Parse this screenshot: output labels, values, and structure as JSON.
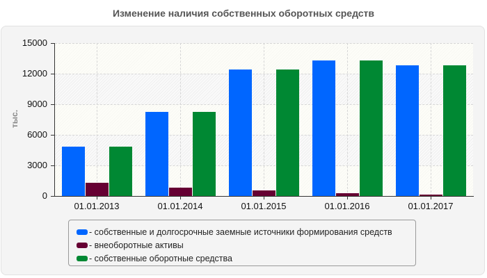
{
  "chart_data": {
    "type": "bar",
    "title": "Изменение наличия собственных оборотных средств",
    "xlabel": "",
    "ylabel": "тыс.",
    "ylim": [
      0,
      15000
    ],
    "yticks": [
      0,
      3000,
      6000,
      9000,
      12000,
      15000
    ],
    "grid": true,
    "legend_position": "bottom",
    "categories": [
      "01.01.2013",
      "01.01.2014",
      "01.01.2015",
      "01.01.2016",
      "01.01.2017"
    ],
    "series": [
      {
        "name": "- собственные и долгосрочные заемные источники формирования средств",
        "color": "#0066ff",
        "values": [
          4840,
          8250,
          12400,
          13300,
          12800
        ]
      },
      {
        "name": "- внеоборотные активы",
        "color": "#660033",
        "values": [
          1300,
          840,
          550,
          270,
          140
        ]
      },
      {
        "name": "- собственные оборотные средства",
        "color": "#008833",
        "values": [
          4840,
          8250,
          12400,
          13300,
          12800
        ]
      }
    ]
  }
}
